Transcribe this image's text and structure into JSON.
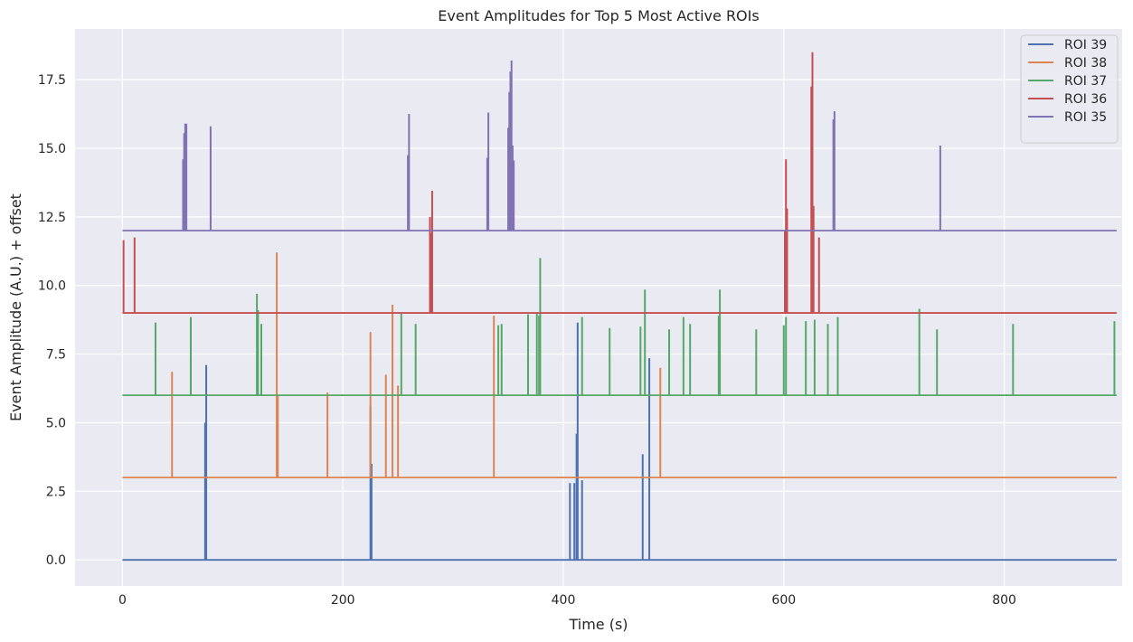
{
  "chart_data": {
    "type": "line",
    "title": "Event Amplitudes for Top 5 Most Active ROIs",
    "xlabel": "Time (s)",
    "ylabel": "Event Amplitude (A.U.) + offset",
    "xlim": [
      -43,
      907
    ],
    "ylim": [
      -0.95,
      19.35
    ],
    "x_ticks": [
      0,
      200,
      400,
      600,
      800
    ],
    "x_tick_labels": [
      "0",
      "200",
      "400",
      "600",
      "800"
    ],
    "y_ticks": [
      0.0,
      2.5,
      5.0,
      7.5,
      10.0,
      12.5,
      15.0,
      17.5
    ],
    "y_tick_labels": [
      "0.0",
      "2.5",
      "5.0",
      "7.5",
      "10.0",
      "12.5",
      "15.0",
      "17.5"
    ],
    "grid": true,
    "legend_position": "top-right",
    "time_range": [
      0,
      902
    ],
    "series": [
      {
        "name": "ROI 39",
        "color": "#4c72b0",
        "baseline": 0,
        "events": [
          [
            75,
            5.0
          ],
          [
            76,
            7.1
          ],
          [
            225,
            5.6
          ],
          [
            226,
            3.5
          ],
          [
            406,
            2.8
          ],
          [
            410,
            2.8
          ],
          [
            412,
            4.6
          ],
          [
            413,
            8.65
          ],
          [
            417,
            2.9
          ],
          [
            472,
            3.85
          ],
          [
            478,
            7.35
          ]
        ]
      },
      {
        "name": "ROI 38",
        "color": "#dd8452",
        "baseline": 3,
        "events": [
          [
            45,
            6.85
          ],
          [
            140,
            11.2
          ],
          [
            141,
            6.0
          ],
          [
            186,
            6.1
          ],
          [
            225,
            8.3
          ],
          [
            239,
            6.75
          ],
          [
            245,
            9.3
          ],
          [
            250,
            6.35
          ],
          [
            337,
            8.9
          ],
          [
            488,
            7.0
          ]
        ]
      },
      {
        "name": "ROI 37",
        "color": "#55a868",
        "baseline": 6,
        "events": [
          [
            30,
            8.65
          ],
          [
            62,
            8.85
          ],
          [
            122,
            9.7
          ],
          [
            123,
            9.1
          ],
          [
            126,
            8.6
          ],
          [
            253,
            9.0
          ],
          [
            266,
            8.6
          ],
          [
            341,
            8.55
          ],
          [
            344,
            8.6
          ],
          [
            368,
            8.95
          ],
          [
            376,
            9.0
          ],
          [
            378,
            8.9
          ],
          [
            379,
            11.0
          ],
          [
            417,
            8.85
          ],
          [
            442,
            8.45
          ],
          [
            470,
            8.5
          ],
          [
            474,
            9.85
          ],
          [
            496,
            8.4
          ],
          [
            509,
            8.85
          ],
          [
            515,
            8.6
          ],
          [
            541,
            8.9
          ],
          [
            542,
            9.85
          ],
          [
            575,
            8.4
          ],
          [
            600,
            8.55
          ],
          [
            602,
            8.85
          ],
          [
            620,
            8.7
          ],
          [
            628,
            8.75
          ],
          [
            640,
            8.6
          ],
          [
            649,
            8.85
          ],
          [
            723,
            9.15
          ],
          [
            739,
            8.4
          ],
          [
            808,
            8.6
          ],
          [
            900,
            8.7
          ]
        ]
      },
      {
        "name": "ROI 36",
        "color": "#c44e52",
        "baseline": 9,
        "events": [
          [
            1,
            11.65
          ],
          [
            11,
            11.75
          ],
          [
            279,
            12.5
          ],
          [
            280,
            11.9
          ],
          [
            281,
            13.45
          ],
          [
            601,
            12.0
          ],
          [
            602,
            14.6
          ],
          [
            603,
            12.8
          ],
          [
            625,
            17.25
          ],
          [
            626,
            18.5
          ],
          [
            627,
            12.9
          ],
          [
            632,
            11.75
          ]
        ]
      },
      {
        "name": "ROI 35",
        "color": "#8172b3",
        "baseline": 12,
        "events": [
          [
            55,
            14.6
          ],
          [
            56,
            15.55
          ],
          [
            57,
            15.9
          ],
          [
            58,
            15.9
          ],
          [
            80,
            15.8
          ],
          [
            259,
            14.75
          ],
          [
            260,
            16.25
          ],
          [
            331,
            14.65
          ],
          [
            332,
            16.3
          ],
          [
            350,
            15.75
          ],
          [
            351,
            17.05
          ],
          [
            352,
            17.8
          ],
          [
            353,
            18.2
          ],
          [
            354,
            15.1
          ],
          [
            355,
            14.55
          ],
          [
            645,
            16.05
          ],
          [
            646,
            16.35
          ],
          [
            742,
            15.1
          ]
        ]
      }
    ]
  }
}
